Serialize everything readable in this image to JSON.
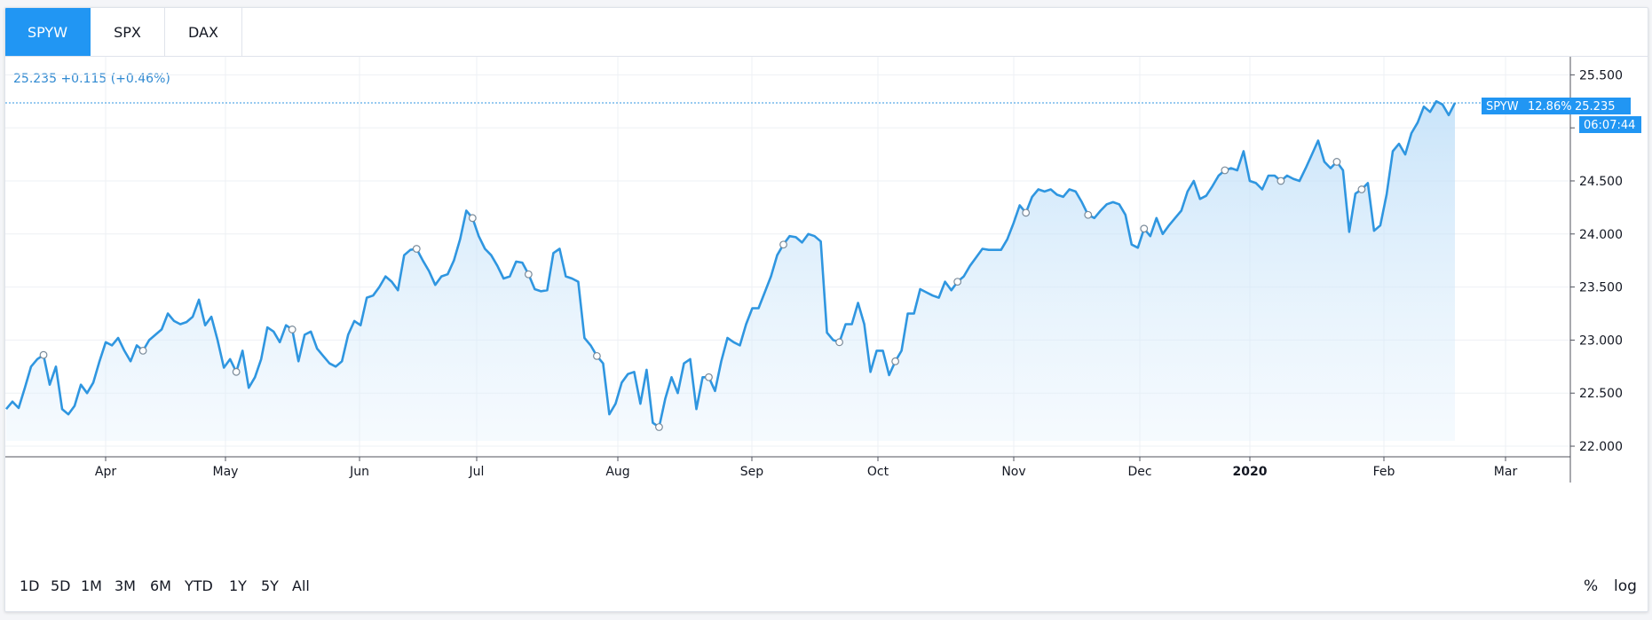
{
  "tabs": [
    {
      "label": "SPYW",
      "active": true
    },
    {
      "label": "SPX",
      "active": false
    },
    {
      "label": "DAX",
      "active": false
    }
  ],
  "legend": {
    "price": "25.235",
    "change": "+0.115",
    "change_pct": "(+0.46%)"
  },
  "price_label": {
    "symbol": "SPYW",
    "pct": "12.86%",
    "value": "25.235",
    "countdown": "06:07:44"
  },
  "ranges": [
    "1D",
    "5D",
    "1M",
    "3M",
    "6M",
    "YTD",
    "1Y",
    "5Y",
    "All"
  ],
  "scale_buttons": {
    "percent": "%",
    "log": "log"
  },
  "colors": {
    "accent": "#2196f3",
    "line": "#2f96e0",
    "fill": "#cfe6fa",
    "legend_text": "#2f89d1"
  },
  "chart_data": {
    "type": "area",
    "title": "",
    "xlabel": "",
    "ylabel": "",
    "series": [
      {
        "values": [
          22.35,
          22.42,
          22.36,
          22.55,
          22.75,
          22.82,
          22.86,
          22.58,
          22.75,
          22.35,
          22.3,
          22.38,
          22.58,
          22.5,
          22.6,
          22.8,
          22.98,
          22.95,
          23.02,
          22.9,
          22.8,
          22.95,
          22.9,
          23.0,
          23.05,
          23.1,
          23.25,
          23.18,
          23.15,
          23.17,
          23.22,
          23.38,
          23.14,
          23.22,
          23.0,
          22.74,
          22.82,
          22.7,
          22.9,
          22.55,
          22.65,
          22.82,
          23.12,
          23.08,
          22.98,
          23.14,
          23.1,
          22.8,
          23.05,
          23.08,
          22.92,
          22.85,
          22.78,
          22.75,
          22.8,
          23.05,
          23.18,
          23.14,
          23.4,
          23.42,
          23.5,
          23.6,
          23.55,
          23.47,
          23.8,
          23.85,
          23.86,
          23.75,
          23.65,
          23.52,
          23.6,
          23.62,
          23.75,
          23.95,
          24.22,
          24.15,
          23.98,
          23.86,
          23.8,
          23.7,
          23.58,
          23.6,
          23.74,
          23.73,
          23.62,
          23.48,
          23.46,
          23.47,
          23.82,
          23.86,
          23.6,
          23.58,
          23.55,
          23.02,
          22.95,
          22.85,
          22.78,
          22.3,
          22.4,
          22.6,
          22.68,
          22.7,
          22.4,
          22.72,
          22.22,
          22.18,
          22.45,
          22.65,
          22.5,
          22.78,
          22.82,
          22.35,
          22.65,
          22.65,
          22.52,
          22.8,
          23.02,
          22.98,
          22.95,
          23.15,
          23.3,
          23.3,
          23.45,
          23.6,
          23.8,
          23.9,
          23.98,
          23.97,
          23.92,
          24.0,
          23.98,
          23.93,
          23.07,
          23.0,
          22.98,
          23.15,
          23.15,
          23.35,
          23.15,
          22.7,
          22.9,
          22.9,
          22.67,
          22.8,
          22.9,
          23.25,
          23.25,
          23.48,
          23.45,
          23.42,
          23.4,
          23.55,
          23.47,
          23.55,
          23.6,
          23.7,
          23.78,
          23.86,
          23.85,
          23.85,
          23.85,
          23.95,
          24.1,
          24.27,
          24.2,
          24.35,
          24.42,
          24.4,
          24.42,
          24.37,
          24.35,
          24.42,
          24.4,
          24.3,
          24.18,
          24.15,
          24.22,
          24.28,
          24.3,
          24.28,
          24.18,
          23.9,
          23.87,
          24.05,
          23.98,
          24.15,
          24.0,
          24.08,
          24.15,
          24.22,
          24.4,
          24.5,
          24.33,
          24.36,
          24.45,
          24.55,
          24.6,
          24.62,
          24.6,
          24.78,
          24.5,
          24.48,
          24.42,
          24.55,
          24.55,
          24.5,
          24.55,
          24.52,
          24.5,
          24.62,
          24.75,
          24.88,
          24.68,
          24.62,
          24.68,
          24.6,
          24.02,
          24.38,
          24.42,
          24.48,
          24.03,
          24.08,
          24.37,
          24.78,
          24.85,
          24.75,
          24.95,
          25.05,
          25.2,
          25.15,
          25.25,
          25.22,
          25.12,
          25.235
        ]
      }
    ],
    "markers": [
      6,
      22,
      37,
      46,
      66,
      75,
      84,
      95,
      105,
      113,
      125,
      134,
      143,
      153,
      164,
      174,
      183,
      196,
      205,
      214,
      218
    ],
    "x_ticks": [
      "Apr",
      "May",
      "Jun",
      "Jul",
      "Aug",
      "Sep",
      "Oct",
      "Nov",
      "Dec",
      "2020",
      "Jan",
      "Feb",
      "Mar"
    ],
    "y_ticks": [
      "22.000",
      "22.500",
      "23.000",
      "23.500",
      "24.000",
      "24.500",
      "25.000",
      "25.500"
    ],
    "ylim": [
      21.9,
      25.67
    ],
    "grid": true,
    "last_value": 25.235
  }
}
